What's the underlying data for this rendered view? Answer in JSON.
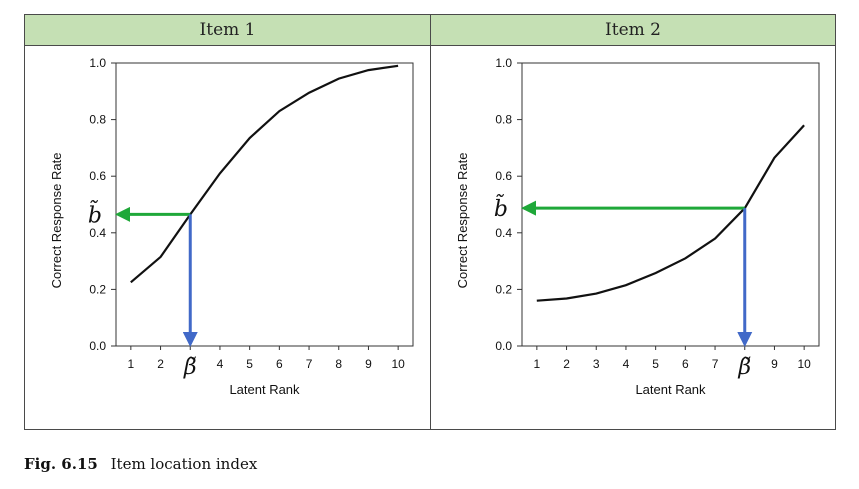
{
  "figure": {
    "caption_number": "Fig. 6.15",
    "caption_text": "Item location index"
  },
  "colors": {
    "header_bg": "#c5e0b4",
    "curve": "#111111",
    "horizontal_arrow": "#1fa839",
    "vertical_arrow": "#4169c8"
  },
  "chart_data": [
    {
      "type": "line",
      "title": "Item 1",
      "xlabel": "Latent Rank",
      "ylabel": "Correct Response Rate",
      "xlim": [
        0.5,
        10.5
      ],
      "ylim": [
        0,
        1
      ],
      "x_ticks": [
        "1",
        "2",
        "",
        "4",
        "5",
        "6",
        "7",
        "8",
        "9",
        "10"
      ],
      "y_ticks": [
        "0.0",
        "0.2",
        "0.4",
        "0.6",
        "0.8",
        "1.0"
      ],
      "x": [
        1,
        2,
        3,
        4,
        5,
        6,
        7,
        8,
        9,
        10
      ],
      "values": [
        0.225,
        0.315,
        0.465,
        0.61,
        0.735,
        0.83,
        0.895,
        0.945,
        0.975,
        0.99
      ],
      "annotation": {
        "beta_label": "β̃",
        "b_label": "b̃",
        "beta": 3,
        "b": 0.465
      }
    },
    {
      "type": "line",
      "title": "Item 2",
      "xlabel": "Latent Rank",
      "ylabel": "Correct Response Rate",
      "xlim": [
        0.5,
        10.5
      ],
      "ylim": [
        0,
        1
      ],
      "x_ticks": [
        "1",
        "2",
        "3",
        "4",
        "5",
        "6",
        "7",
        "",
        "9",
        "10"
      ],
      "y_ticks": [
        "0.0",
        "0.2",
        "0.4",
        "0.6",
        "0.8",
        "1.0"
      ],
      "x": [
        1,
        2,
        3,
        4,
        5,
        6,
        7,
        8,
        9,
        10
      ],
      "values": [
        0.16,
        0.168,
        0.185,
        0.215,
        0.258,
        0.31,
        0.38,
        0.487,
        0.665,
        0.78
      ],
      "annotation": {
        "beta_label": "β̃",
        "b_label": "b̃",
        "beta": 8,
        "b": 0.487
      }
    }
  ]
}
